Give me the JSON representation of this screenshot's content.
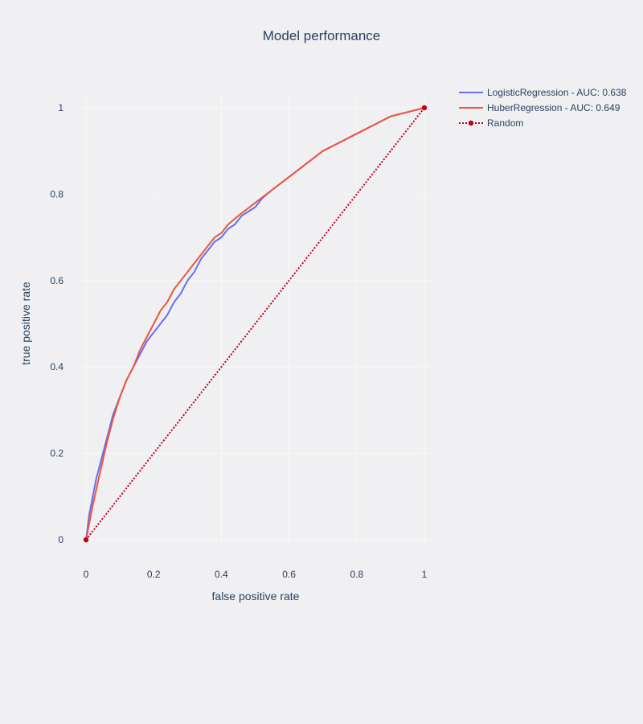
{
  "chart_data": {
    "type": "line",
    "title": "Model performance",
    "xlabel": "false positive rate",
    "ylabel": "true positive rate",
    "xlim": [
      0,
      1
    ],
    "ylim": [
      0,
      1
    ],
    "x_ticks": [
      "0",
      "0.2",
      "0.4",
      "0.6",
      "0.8",
      "1"
    ],
    "y_ticks": [
      "0",
      "0.2",
      "0.4",
      "0.6",
      "0.8",
      "1"
    ],
    "grid": true,
    "legend_position": "top-right",
    "series": [
      {
        "name": "LogisticRegression - AUC: 0.638",
        "color": "#636efa",
        "dash": "solid",
        "markers": false,
        "x": [
          0,
          0.01,
          0.02,
          0.03,
          0.04,
          0.06,
          0.08,
          0.1,
          0.12,
          0.14,
          0.16,
          0.18,
          0.2,
          0.22,
          0.24,
          0.26,
          0.28,
          0.3,
          0.32,
          0.34,
          0.36,
          0.38,
          0.4,
          0.42,
          0.44,
          0.46,
          0.48,
          0.5,
          0.52,
          0.55,
          0.6,
          0.65,
          0.7,
          0.75,
          0.8,
          0.85,
          0.9,
          0.95,
          1.0
        ],
        "y": [
          0,
          0.06,
          0.1,
          0.14,
          0.17,
          0.23,
          0.29,
          0.33,
          0.37,
          0.4,
          0.43,
          0.46,
          0.48,
          0.5,
          0.52,
          0.55,
          0.57,
          0.6,
          0.62,
          0.65,
          0.67,
          0.69,
          0.7,
          0.72,
          0.73,
          0.75,
          0.76,
          0.77,
          0.79,
          0.81,
          0.84,
          0.87,
          0.9,
          0.92,
          0.94,
          0.96,
          0.98,
          0.99,
          1.0
        ]
      },
      {
        "name": "HuberRegression - AUC: 0.649",
        "color": "#ef553b",
        "dash": "solid",
        "markers": false,
        "x": [
          0,
          0.02,
          0.04,
          0.06,
          0.08,
          0.1,
          0.12,
          0.14,
          0.16,
          0.18,
          0.2,
          0.22,
          0.24,
          0.26,
          0.28,
          0.3,
          0.32,
          0.34,
          0.36,
          0.38,
          0.4,
          0.42,
          0.45,
          0.5,
          0.55,
          0.6,
          0.65,
          0.7,
          0.75,
          0.8,
          0.85,
          0.9,
          0.95,
          1.0
        ],
        "y": [
          0,
          0.08,
          0.15,
          0.22,
          0.28,
          0.33,
          0.37,
          0.4,
          0.44,
          0.47,
          0.5,
          0.53,
          0.55,
          0.58,
          0.6,
          0.62,
          0.64,
          0.66,
          0.68,
          0.7,
          0.71,
          0.73,
          0.75,
          0.78,
          0.81,
          0.84,
          0.87,
          0.9,
          0.92,
          0.94,
          0.96,
          0.98,
          0.99,
          1.0
        ]
      },
      {
        "name": "Random",
        "color": "#c0001a",
        "dash": "dot",
        "markers": true,
        "x": [
          0,
          1
        ],
        "y": [
          0,
          1
        ]
      }
    ]
  }
}
